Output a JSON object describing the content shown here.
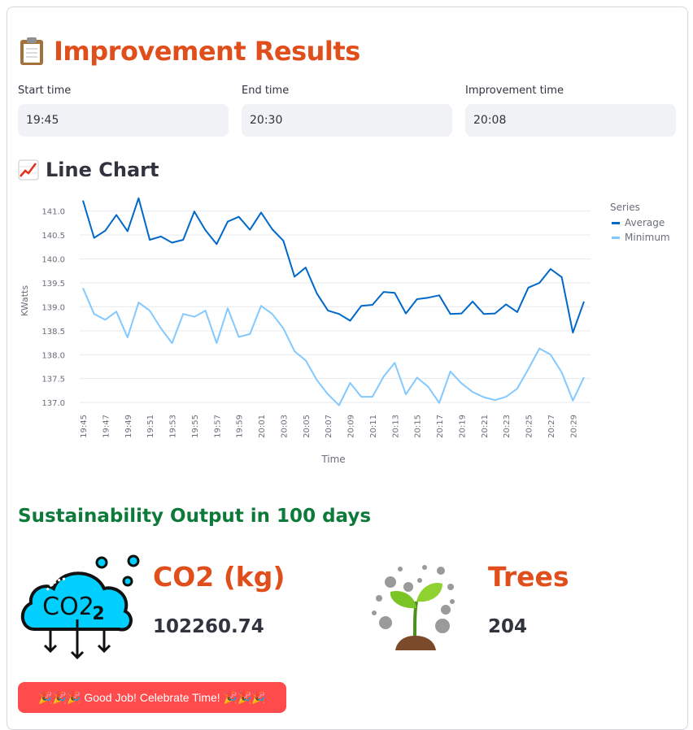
{
  "page": {
    "title": "Improvement Results",
    "title_icon": "clipboard-icon"
  },
  "inputs": {
    "start": {
      "label": "Start time",
      "value": "19:45"
    },
    "end": {
      "label": "End time",
      "value": "20:30"
    },
    "improvement": {
      "label": "Improvement time",
      "value": "20:08"
    }
  },
  "chart_section": {
    "title": "Line Chart",
    "icon": "chart-increasing-icon"
  },
  "chart_data": {
    "type": "line",
    "xlabel": "Time",
    "ylabel": "KWatts",
    "ylim": [
      136.9,
      141.3
    ],
    "yticks": [
      "137.0",
      "137.5",
      "138.0",
      "138.5",
      "139.0",
      "139.5",
      "140.0",
      "140.5",
      "141.0"
    ],
    "legend_title": "Series",
    "legend_position": "top-right",
    "x": [
      "19:45",
      "19:46",
      "19:47",
      "19:48",
      "19:49",
      "19:50",
      "19:51",
      "19:52",
      "19:53",
      "19:54",
      "19:55",
      "19:56",
      "19:57",
      "19:58",
      "19:59",
      "20:00",
      "20:01",
      "20:02",
      "20:03",
      "20:04",
      "20:05",
      "20:06",
      "20:07",
      "20:08",
      "20:09",
      "20:10",
      "20:11",
      "20:12",
      "20:13",
      "20:14",
      "20:15",
      "20:16",
      "20:17",
      "20:18",
      "20:19",
      "20:20",
      "20:21",
      "20:22",
      "20:23",
      "20:24",
      "20:25",
      "20:26",
      "20:27",
      "20:28",
      "20:29",
      "20:30"
    ],
    "xticks": [
      "19:45",
      "19:47",
      "19:49",
      "19:51",
      "19:53",
      "19:55",
      "19:57",
      "19:59",
      "20:01",
      "20:03",
      "20:05",
      "20:07",
      "20:09",
      "20:11",
      "20:13",
      "20:15",
      "20:17",
      "20:19",
      "20:21",
      "20:23",
      "20:25",
      "20:27",
      "20:29"
    ],
    "series": [
      {
        "name": "Average",
        "color": "#0068c9",
        "values": [
          141.22,
          140.44,
          140.59,
          140.92,
          140.58,
          141.27,
          140.4,
          140.47,
          140.34,
          140.4,
          140.99,
          140.6,
          140.31,
          140.78,
          140.88,
          140.61,
          140.97,
          140.62,
          140.38,
          139.63,
          139.82,
          139.28,
          138.92,
          138.85,
          138.71,
          139.02,
          139.04,
          139.31,
          139.29,
          138.86,
          139.16,
          139.19,
          139.24,
          138.85,
          138.86,
          139.11,
          138.85,
          138.86,
          139.05,
          138.89,
          139.4,
          139.5,
          139.79,
          139.62,
          138.46,
          139.11
        ]
      },
      {
        "name": "Minimum",
        "color": "#83c9ff",
        "values": [
          139.39,
          138.85,
          138.73,
          138.9,
          138.36,
          139.09,
          138.92,
          138.55,
          138.24,
          138.85,
          138.79,
          138.92,
          138.24,
          138.97,
          138.37,
          138.43,
          139.02,
          138.85,
          138.55,
          138.07,
          137.88,
          137.47,
          137.17,
          136.94,
          137.41,
          137.12,
          137.12,
          137.54,
          137.83,
          137.17,
          137.52,
          137.33,
          136.99,
          137.65,
          137.4,
          137.22,
          137.11,
          137.05,
          137.12,
          137.29,
          137.7,
          138.13,
          138.0,
          137.63,
          137.04,
          137.53
        ]
      }
    ]
  },
  "sustainability": {
    "title": "Sustainability Output in 100 days",
    "co2": {
      "label": "CO2 (kg)",
      "value": "102260.74",
      "icon": "co2-cloud-icon",
      "icon_text": "CO2",
      "icon_sub": "2"
    },
    "trees": {
      "label": "Trees",
      "value": "204",
      "icon": "seedling-icon"
    }
  },
  "button": {
    "label": "🎉🎉🎉 Good Job! Celebrate Time! 🎉🎉🎉"
  },
  "colors": {
    "accent": "#e04e1b",
    "green": "#0d7a3a",
    "button": "#ff4b4b"
  }
}
